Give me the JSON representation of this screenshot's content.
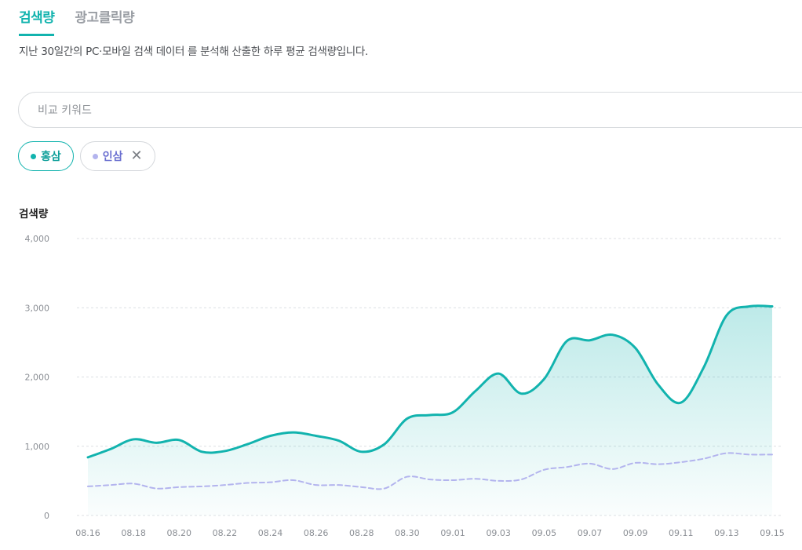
{
  "tabs": [
    {
      "label": "검색량",
      "active": true
    },
    {
      "label": "광고클릭량",
      "active": false
    }
  ],
  "description": "지난 30일간의 PC·모바일 검색 데이터 를 분석해 산출한 하루 평균 검색량입니다.",
  "search": {
    "placeholder": "비교 키워드"
  },
  "chips": [
    {
      "label": "홍삼",
      "color": "#12b3ae"
    },
    {
      "label": "인삼",
      "color": "#b3b4ee",
      "close_icon": "close-icon"
    }
  ],
  "colors": {
    "accent": "#12b3ae",
    "secondary": "#b3b4ee",
    "grid": "#dcdfe3"
  },
  "chart_title": "검색량",
  "chart_data": {
    "type": "line",
    "ylim": [
      0,
      4000
    ],
    "yticks": [
      0,
      1000,
      2000,
      3000,
      4000
    ],
    "ytick_labels": [
      "0",
      "1,000",
      "2,000",
      "3,000",
      "4,000"
    ],
    "x": [
      "08.16",
      "08.17",
      "08.18",
      "08.19",
      "08.20",
      "08.21",
      "08.22",
      "08.23",
      "08.24",
      "08.25",
      "08.26",
      "08.27",
      "08.28",
      "08.29",
      "08.30",
      "08.31",
      "09.01",
      "09.02",
      "09.03",
      "09.04",
      "09.05",
      "09.06",
      "09.07",
      "09.08",
      "09.09",
      "09.10",
      "09.11",
      "09.12",
      "09.13",
      "09.14",
      "09.15"
    ],
    "xtick_labels": [
      "08.16",
      "08.18",
      "08.20",
      "08.22",
      "08.24",
      "08.26",
      "08.28",
      "08.30",
      "09.01",
      "09.03",
      "09.05",
      "09.07",
      "09.09",
      "09.11",
      "09.13",
      "09.15"
    ],
    "grid": true,
    "series": [
      {
        "name": "홍삼",
        "style": "solid",
        "fill": true,
        "values": [
          840,
          960,
          1100,
          1050,
          1090,
          920,
          930,
          1030,
          1150,
          1200,
          1150,
          1080,
          920,
          1030,
          1400,
          1450,
          1490,
          1800,
          2050,
          1760,
          1970,
          2520,
          2530,
          2610,
          2420,
          1890,
          1630,
          2140,
          2890,
          3020,
          3020
        ]
      },
      {
        "name": "인삼",
        "style": "dashed",
        "fill": false,
        "values": [
          420,
          440,
          460,
          390,
          410,
          420,
          440,
          470,
          480,
          510,
          440,
          440,
          410,
          390,
          560,
          520,
          510,
          530,
          500,
          520,
          660,
          700,
          750,
          670,
          760,
          740,
          770,
          820,
          900,
          880,
          880
        ]
      }
    ]
  }
}
